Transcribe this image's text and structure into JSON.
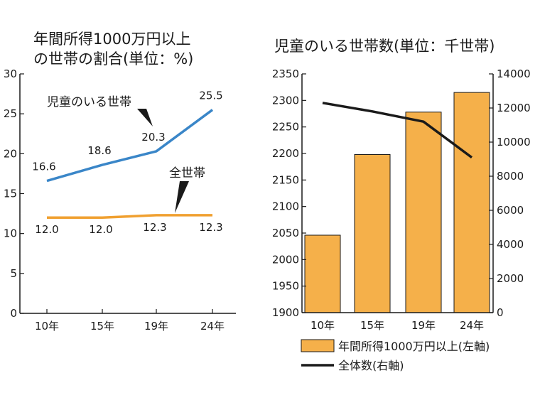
{
  "chart_data": [
    {
      "type": "line",
      "title_line1": "年間所得1000万円以上",
      "title_line2": "の世帯の割合(単位：%)",
      "categories": [
        "10年",
        "15年",
        "19年",
        "24年"
      ],
      "ylim": [
        0,
        30
      ],
      "yticks": [
        "0",
        "5",
        "10",
        "15",
        "20",
        "25",
        "30"
      ],
      "series": [
        {
          "name": "児童のいる世帯",
          "values": [
            16.6,
            18.6,
            20.3,
            25.5
          ],
          "labels": [
            "16.6",
            "18.6",
            "20.3",
            "25.5"
          ],
          "color": "#3a86c8"
        },
        {
          "name": "全世帯",
          "values": [
            12.0,
            12.0,
            12.3,
            12.3
          ],
          "labels": [
            "12.0",
            "12.0",
            "12.3",
            "12.3"
          ],
          "color": "#f0a030"
        }
      ]
    },
    {
      "type": "bar",
      "title": "児童のいる世帯数(単位：千世帯)",
      "categories": [
        "10年",
        "15年",
        "19年",
        "24年"
      ],
      "ylim_left": [
        1900,
        2350
      ],
      "yticks_left": [
        "1900",
        "1950",
        "2000",
        "2050",
        "2100",
        "2150",
        "2200",
        "2250",
        "2300",
        "2350"
      ],
      "ylim_right": [
        0,
        14000
      ],
      "yticks_right": [
        "0",
        "2000",
        "4000",
        "6000",
        "8000",
        "10000",
        "12000",
        "14000"
      ],
      "series": [
        {
          "name": "年間所得1000万円以上(左軸)",
          "type": "bar",
          "axis": "left",
          "values": [
            2046,
            2198,
            2278,
            2315
          ],
          "color": "#f5b04a"
        },
        {
          "name": "全体数(右軸)",
          "type": "line",
          "axis": "right",
          "values": [
            12300,
            11800,
            11200,
            9100
          ],
          "color": "#1a1a1a"
        }
      ]
    }
  ]
}
